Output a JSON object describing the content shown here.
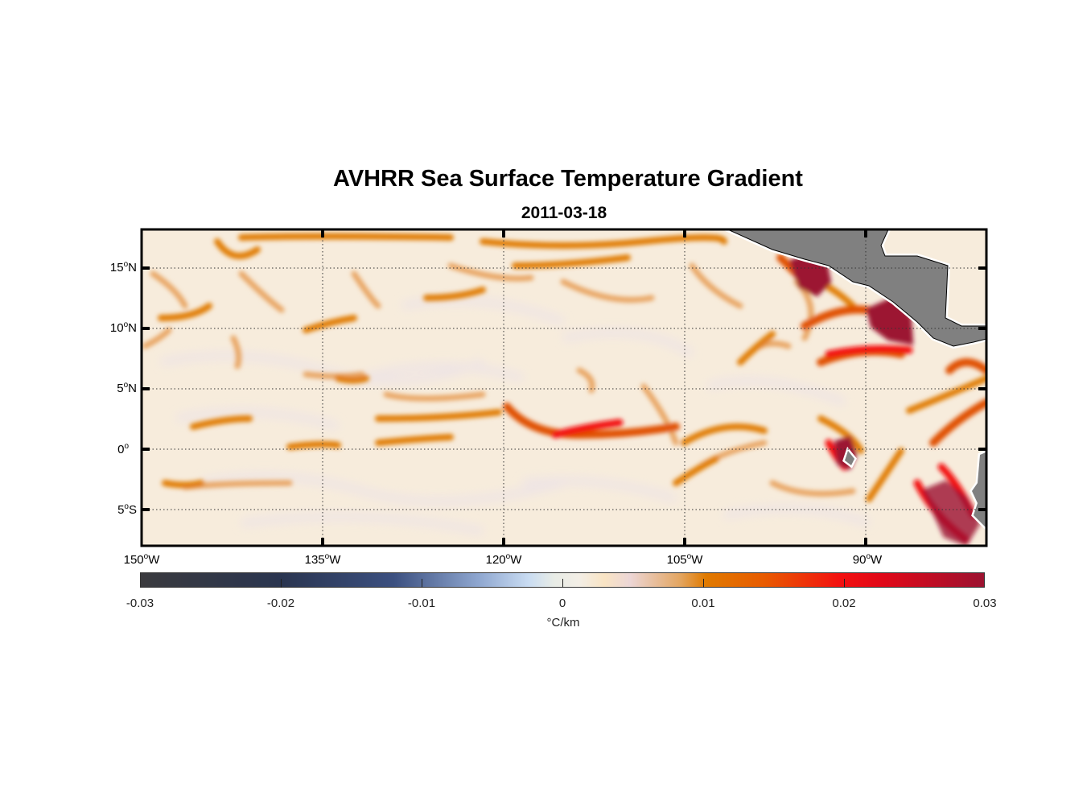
{
  "title": "AVHRR Sea Surface Temperature Gradient",
  "subtitle": "2011-03-18",
  "degree_mark": "o",
  "y_ticks": [
    {
      "value": "15",
      "hemi": "N"
    },
    {
      "value": "10",
      "hemi": "N"
    },
    {
      "value": "5",
      "hemi": "N"
    },
    {
      "value": "0",
      "hemi": ""
    },
    {
      "value": "5",
      "hemi": "S"
    }
  ],
  "x_ticks": [
    {
      "value": "150",
      "hemi": "W"
    },
    {
      "value": "135",
      "hemi": "W"
    },
    {
      "value": "120",
      "hemi": "W"
    },
    {
      "value": "105",
      "hemi": "W"
    },
    {
      "value": "90",
      "hemi": "W"
    }
  ],
  "colorbar": {
    "ticks": [
      "-0.03",
      "-0.02",
      "-0.01",
      "0",
      "0.01",
      "0.02",
      "0.03"
    ],
    "unit": "°C/km",
    "range": [
      -0.03,
      0.03
    ]
  },
  "colors": {
    "land": "#808080",
    "low": "#3a3a3e",
    "mid": "#f3eee6",
    "orange": "#e07a00",
    "red": "#f31010",
    "high": "#9c1230"
  }
}
